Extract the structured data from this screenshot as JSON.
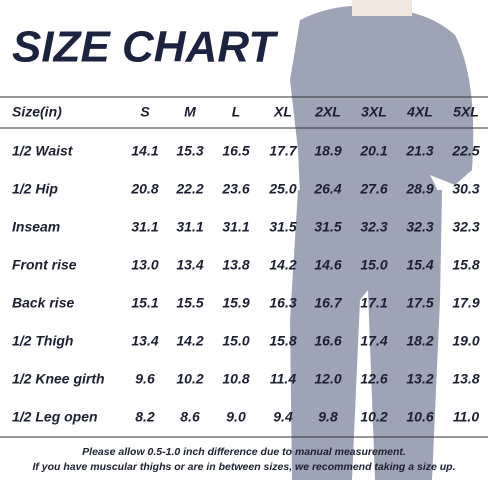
{
  "header": {
    "title": "SIZE CHART"
  },
  "table": {
    "columns": [
      "Size(in)",
      "S",
      "M",
      "L",
      "XL",
      "2XL",
      "3XL",
      "4XL",
      "5XL"
    ],
    "rows": [
      [
        "1/2 Waist",
        "14.1",
        "15.3",
        "16.5",
        "17.7",
        "18.9",
        "20.1",
        "21.3",
        "22.5"
      ],
      [
        "1/2 Hip",
        "20.8",
        "22.2",
        "23.6",
        "25.0",
        "26.4",
        "27.6",
        "28.9",
        "30.3"
      ],
      [
        "Inseam",
        "31.1",
        "31.1",
        "31.1",
        "31.5",
        "31.5",
        "32.3",
        "32.3",
        "32.3"
      ],
      [
        "Front rise",
        "13.0",
        "13.4",
        "13.8",
        "14.2",
        "14.6",
        "15.0",
        "15.4",
        "15.8"
      ],
      [
        "Back rise",
        "15.1",
        "15.5",
        "15.9",
        "16.3",
        "16.7",
        "17.1",
        "17.5",
        "17.9"
      ],
      [
        "1/2 Thigh",
        "13.4",
        "14.2",
        "15.0",
        "15.8",
        "16.6",
        "17.4",
        "18.2",
        "19.0"
      ],
      [
        "1/2 Knee girth",
        "9.6",
        "10.2",
        "10.8",
        "11.4",
        "12.0",
        "12.6",
        "13.2",
        "13.8"
      ],
      [
        "1/2 Leg open",
        "8.2",
        "8.6",
        "9.0",
        "9.4",
        "9.8",
        "10.2",
        "10.6",
        "11.0"
      ]
    ]
  },
  "footnote": {
    "lines": [
      "Please allow 0.5-1.0 inch difference due to manual measurement.",
      "If you have muscular thighs or are in between sizes, we recommend taking a size up."
    ]
  }
}
